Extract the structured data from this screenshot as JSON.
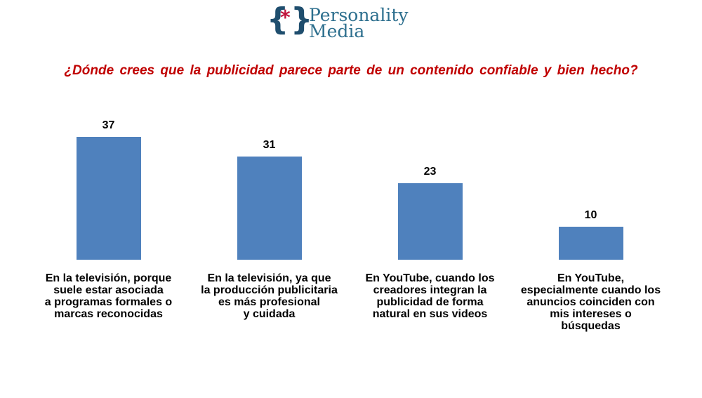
{
  "logo": {
    "open": "{",
    "star": "*",
    "close": "}",
    "line1": "Personality",
    "line2": "Media"
  },
  "chart_data": {
    "type": "bar",
    "title": "¿Dónde crees que la publicidad parece parte de un contenido confiable y bien hecho?",
    "categories": [
      "En la televisión, porque\nsuele estar asociada\na programas formales o\nmarcas reconocidas",
      "En la televisión, ya que\nla producción publicitaria\nes más profesional\ny cuidada",
      "En YouTube, cuando los\ncreadores integran la\npublicidad de forma\nnatural en sus videos",
      "En YouTube,\nespecialmente cuando los\nanuncios coinciden con\nmis intereses o\nbúsquedas"
    ],
    "values": [
      37,
      31,
      23,
      10
    ],
    "color": "#4f81bd"
  }
}
